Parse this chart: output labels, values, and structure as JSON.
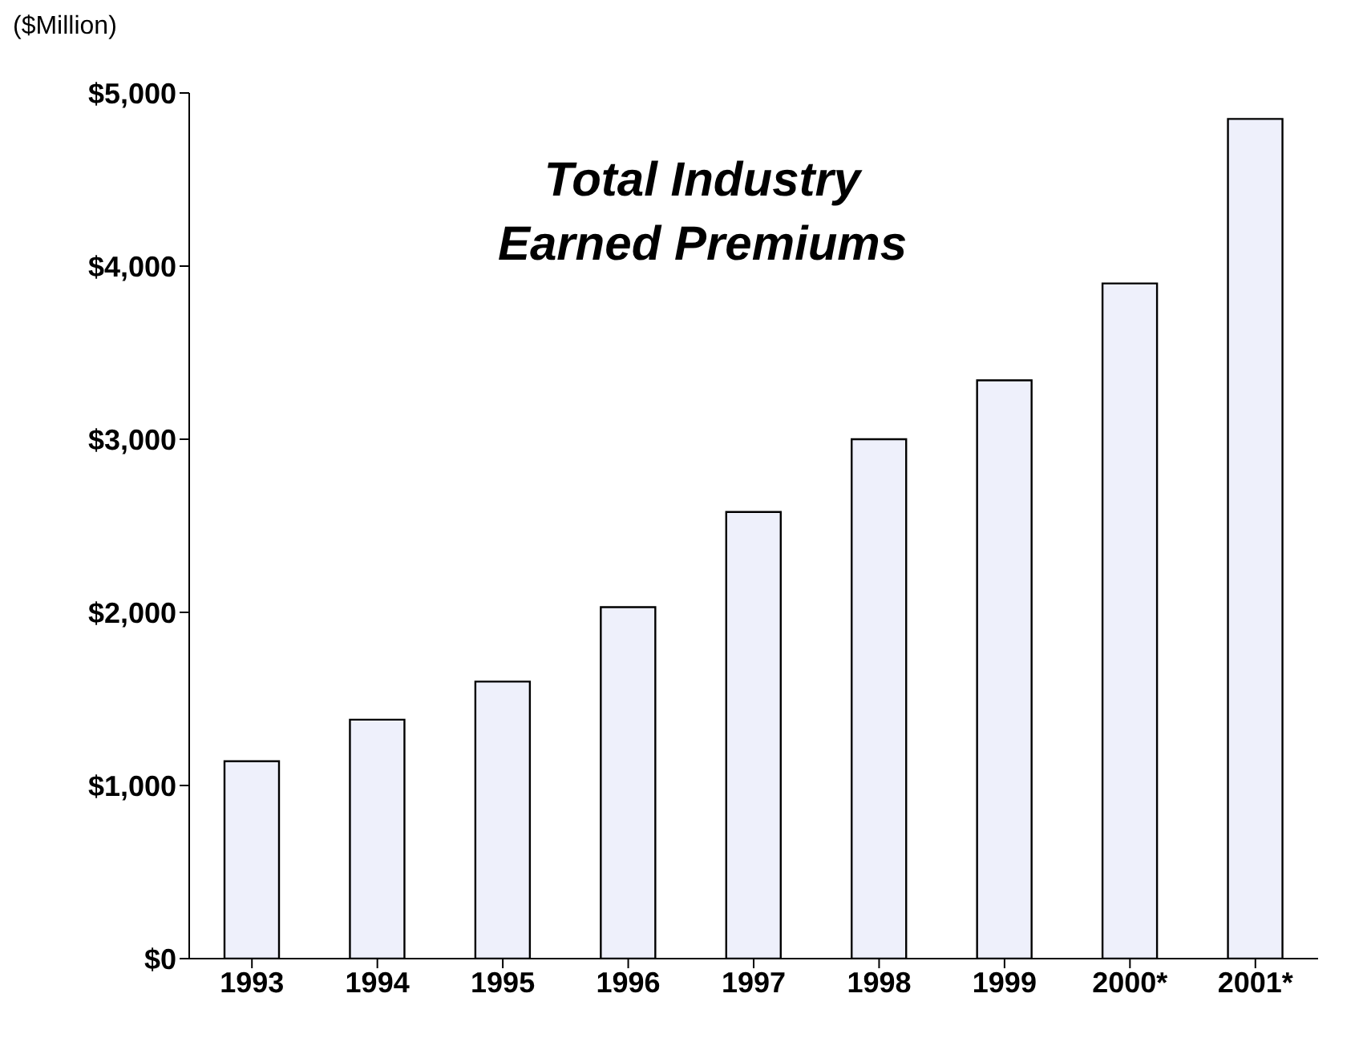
{
  "chart_data": {
    "type": "bar",
    "title": "Total Industry\nEarned Premiums",
    "ylabel": "($Million)",
    "categories": [
      "1993",
      "1994",
      "1995",
      "1996",
      "1997",
      "1998",
      "1999",
      "2000*",
      "2001*"
    ],
    "values": [
      1140,
      1380,
      1600,
      2030,
      2580,
      3000,
      3340,
      3900,
      4850
    ],
    "color": "#eef0fb",
    "ylim": [
      0,
      5000
    ],
    "yticks": [
      {
        "value": 0,
        "label": "$0"
      },
      {
        "value": 1000,
        "label": "$1,000"
      },
      {
        "value": 2000,
        "label": "$2,000"
      },
      {
        "value": 3000,
        "label": "$3,000"
      },
      {
        "value": 4000,
        "label": "$4,000"
      },
      {
        "value": 5000,
        "label": "$5,000"
      }
    ],
    "grid": false,
    "legend": false
  }
}
